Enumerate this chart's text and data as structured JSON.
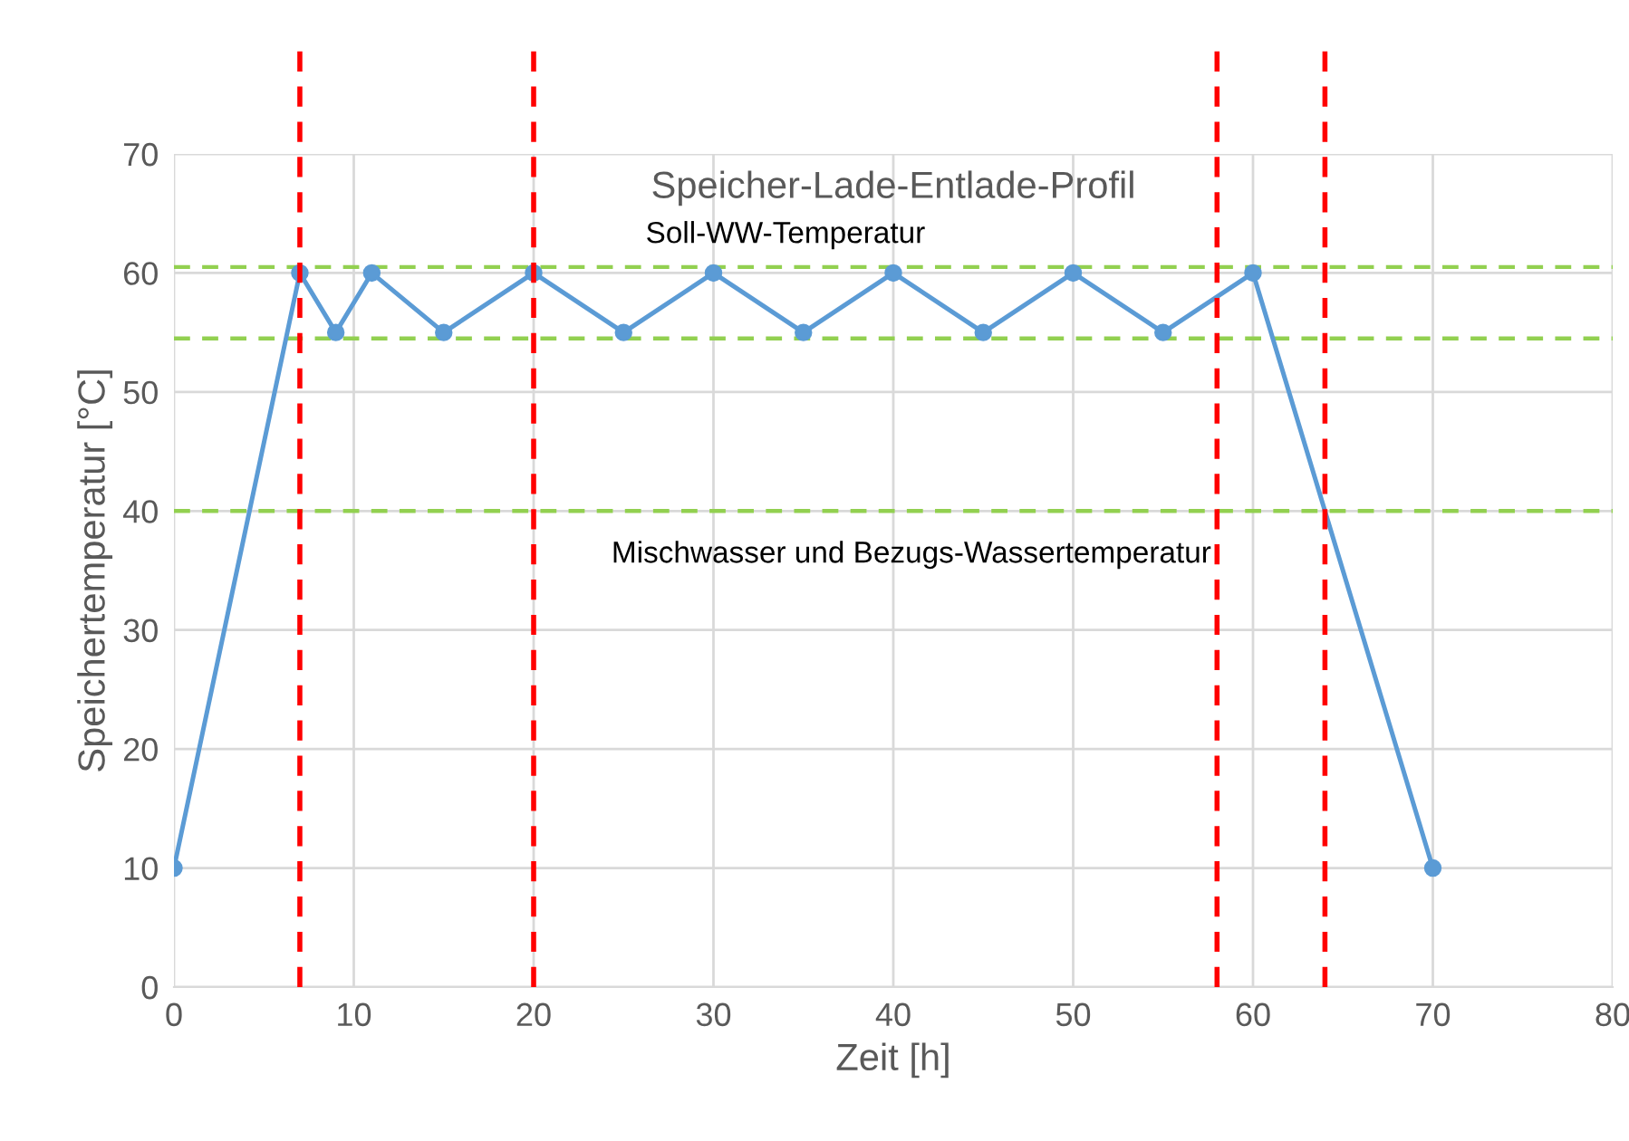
{
  "chart_data": {
    "type": "line",
    "title": "Speicher-Lade-Entlade-Profil",
    "xlabel": "Zeit [h]",
    "ylabel": "Speichertemperatur [°C]",
    "x": [
      0,
      7,
      9,
      11,
      15,
      20,
      25,
      30,
      35,
      40,
      45,
      50,
      55,
      60,
      70
    ],
    "series": [
      {
        "color": "#5b9bd5",
        "values": [
          10,
          60,
          55,
          60,
          55,
          60,
          55,
          60,
          55,
          60,
          55,
          60,
          55,
          60,
          10
        ]
      }
    ],
    "xlim": [
      0,
      80
    ],
    "xticks": [
      0,
      10,
      20,
      30,
      40,
      50,
      60,
      70,
      80
    ],
    "ylim": [
      0,
      70
    ],
    "yticks": [
      0,
      10,
      20,
      30,
      40,
      50,
      60,
      70
    ],
    "grid": true,
    "marker": "circle",
    "line_style": "solid",
    "legend": false,
    "ref_lines": [
      {
        "axis": "x",
        "value": 7,
        "color": "#ff0000",
        "line_style": "dashed"
      },
      {
        "axis": "x",
        "value": 20,
        "color": "#ff0000",
        "line_style": "dashed"
      },
      {
        "axis": "x",
        "value": 58,
        "color": "#ff0000",
        "line_style": "dashed"
      },
      {
        "axis": "x",
        "value": 64,
        "color": "#ff0000",
        "line_style": "dashed"
      },
      {
        "axis": "y",
        "value": 60.5,
        "color": "#92d050",
        "line_style": "dashed",
        "label": "Soll-WW-Temperatur"
      },
      {
        "axis": "y",
        "value": 54.5,
        "color": "#92d050",
        "line_style": "dashed"
      },
      {
        "axis": "y",
        "value": 40,
        "color": "#92d050",
        "line_style": "dashed",
        "label": "Mischwasser und Bezugs-Wassertemperatur"
      }
    ]
  }
}
